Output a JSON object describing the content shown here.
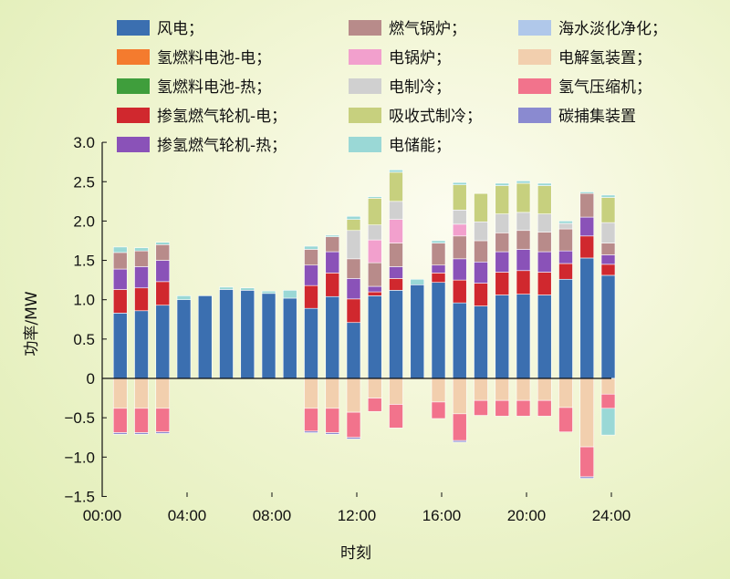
{
  "chart_data": {
    "type": "bar",
    "stacked": true,
    "xlabel": "时刻",
    "ylabel": "功率/MW",
    "ylim": [
      -1.5,
      3.0
    ],
    "yticks": [
      "3.0",
      "2.5",
      "2.0",
      "1.5",
      "1.0",
      "0.5",
      "0",
      "−0.5",
      "−1.0",
      "−1.5"
    ],
    "xticks": [
      "00:00",
      "04:00",
      "08:00",
      "12:00",
      "16:00",
      "20:00",
      "24:00"
    ],
    "xlim": [
      0,
      24
    ],
    "grid": false,
    "legend_position": "top",
    "hours": [
      1,
      2,
      3,
      4,
      5,
      6,
      7,
      8,
      9,
      10,
      11,
      12,
      13,
      14,
      15,
      16,
      17,
      18,
      19,
      20,
      21,
      22,
      23,
      24
    ],
    "series": [
      {
        "name": "风电；",
        "color": "#3b6fb0",
        "values": [
          0.83,
          0.86,
          0.93,
          1.0,
          1.05,
          1.13,
          1.12,
          1.08,
          1.02,
          0.89,
          1.04,
          0.71,
          1.05,
          1.12,
          1.19,
          1.22,
          0.96,
          0.92,
          1.06,
          1.07,
          1.06,
          1.26,
          1.53,
          1.31
        ]
      },
      {
        "name": "氢燃料电池-电；",
        "color": "#f47b2e",
        "values": [
          0,
          0,
          0,
          0,
          0,
          0,
          0,
          0,
          0,
          0,
          0,
          0,
          0,
          0,
          0,
          0,
          0,
          0,
          0,
          0,
          0,
          0,
          0,
          0
        ]
      },
      {
        "name": "氢燃料电池-热；",
        "color": "#3f9e3c",
        "values": [
          0,
          0,
          0,
          0,
          0,
          0,
          0,
          0,
          0,
          0,
          0,
          0,
          0,
          0,
          0,
          0,
          0,
          0,
          0,
          0,
          0,
          0,
          0,
          0
        ]
      },
      {
        "name": "掺氢燃气轮机-电；",
        "color": "#d0282e",
        "values": [
          0.3,
          0.29,
          0.3,
          0,
          0,
          0,
          0,
          0,
          0,
          0.29,
          0.3,
          0.3,
          0.05,
          0.15,
          0,
          0.12,
          0.29,
          0.29,
          0.29,
          0.3,
          0.29,
          0.2,
          0.28,
          0.14
        ]
      },
      {
        "name": "掺氢燃气轮机-热；",
        "color": "#8a52b8",
        "values": [
          0.26,
          0.27,
          0.27,
          0,
          0,
          0,
          0,
          0,
          0,
          0.26,
          0.27,
          0.26,
          0.07,
          0.15,
          0,
          0.1,
          0.27,
          0.27,
          0.26,
          0.27,
          0.26,
          0.16,
          0.24,
          0.12
        ]
      },
      {
        "name": "燃气锅炉；",
        "color": "#b88b8a",
        "values": [
          0.21,
          0.2,
          0.2,
          0,
          0,
          0,
          0,
          0,
          0,
          0.2,
          0.19,
          0.25,
          0.3,
          0.3,
          0,
          0.28,
          0.29,
          0.27,
          0.24,
          0.24,
          0.25,
          0.28,
          0.3,
          0.15
        ]
      },
      {
        "name": "电锅炉；",
        "color": "#f2a0cd",
        "values": [
          0,
          0,
          0,
          0,
          0,
          0,
          0,
          0,
          0,
          0,
          0,
          0,
          0.29,
          0.3,
          0,
          0,
          0.15,
          0,
          0,
          0,
          0,
          0,
          0,
          0
        ]
      },
      {
        "name": "电制冷；",
        "color": "#d0d0d0",
        "values": [
          0,
          0,
          0,
          0,
          0,
          0,
          0,
          0,
          0,
          0,
          0,
          0.36,
          0.19,
          0.23,
          0,
          0,
          0.18,
          0.24,
          0.24,
          0.23,
          0.23,
          0.07,
          0,
          0.26
        ]
      },
      {
        "name": "吸收式制冷；",
        "color": "#c7d07e",
        "values": [
          0,
          0,
          0,
          0,
          0,
          0,
          0,
          0,
          0,
          0,
          0,
          0.14,
          0.34,
          0.37,
          0,
          0,
          0.32,
          0.36,
          0.36,
          0.37,
          0.36,
          0,
          0,
          0.32
        ]
      },
      {
        "name": "电储能；",
        "color": "#9ad8d6",
        "values": [
          0.07,
          0.04,
          0.03,
          0.05,
          0,
          0.03,
          0.03,
          0.03,
          0.1,
          0.04,
          0.02,
          0.04,
          0.02,
          0.03,
          0.07,
          0.03,
          0.03,
          0,
          0.03,
          0.03,
          0.03,
          0.03,
          0.02,
          0.03
        ]
      },
      {
        "name": "海水淡化净化；",
        "color": "#b0c8ea",
        "values": [
          0,
          0,
          0,
          0,
          0,
          0,
          0,
          0,
          0,
          0,
          0,
          0,
          0,
          0,
          0,
          0,
          0,
          0,
          0,
          0,
          0,
          0,
          0,
          0
        ]
      },
      {
        "name": "电解氢装置；",
        "color": "#f2cfae",
        "values": [
          -0.38,
          -0.38,
          -0.38,
          0,
          0,
          0,
          0,
          0,
          0,
          -0.38,
          -0.38,
          -0.43,
          -0.25,
          -0.33,
          0,
          -0.3,
          -0.45,
          -0.28,
          -0.28,
          -0.28,
          -0.28,
          -0.37,
          -0.87,
          -0.2
        ]
      },
      {
        "name": "氢气压缩机；",
        "color": "#f2738c",
        "values": [
          -0.31,
          -0.31,
          -0.3,
          0,
          0,
          0,
          0,
          0,
          0,
          -0.29,
          -0.31,
          -0.32,
          -0.17,
          -0.3,
          0,
          -0.21,
          -0.34,
          -0.19,
          -0.2,
          -0.2,
          -0.2,
          -0.31,
          -0.38,
          -0.18
        ]
      },
      {
        "name": "碳捕集装置",
        "color": "#8a8ad0",
        "values": [
          -0.02,
          -0.02,
          -0.02,
          0,
          0,
          0,
          0,
          0,
          0,
          -0.02,
          -0.02,
          -0.02,
          0,
          0,
          0,
          0,
          -0.02,
          0,
          0,
          0,
          0,
          0,
          -0.02,
          0
        ]
      },
      {
        "name": "海水淡化净化；",
        "color": "#9ad8d6",
        "values": [
          0,
          0,
          0,
          0,
          0,
          0,
          0,
          0,
          0,
          0,
          0,
          0,
          0,
          0,
          0,
          0,
          0,
          0,
          0,
          0,
          0,
          0,
          0,
          -0.34
        ]
      }
    ]
  }
}
